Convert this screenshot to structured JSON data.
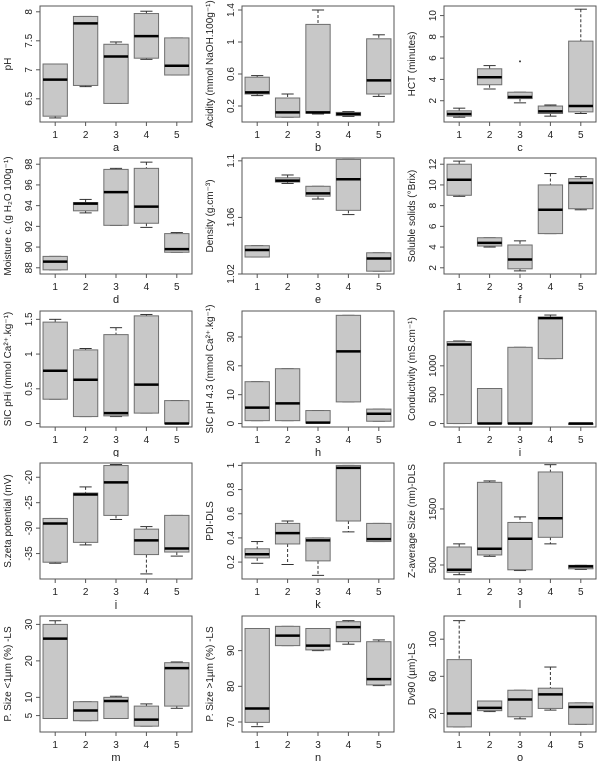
{
  "chart_data": [
    {
      "type": "boxplot",
      "panel_label": "a",
      "ylabel": "pH",
      "categories": [
        "1",
        "2",
        "3",
        "4",
        "5"
      ],
      "ylim": [
        6.1,
        8.1
      ],
      "yticks": [
        6.5,
        7.0,
        7.5,
        8.0
      ],
      "boxes": [
        {
          "min": 6.17,
          "q1": 6.2,
          "median": 6.83,
          "q3": 7.1,
          "max": 7.1
        },
        {
          "min": 6.71,
          "q1": 6.73,
          "median": 7.8,
          "q3": 7.92,
          "max": 7.92
        },
        {
          "min": 6.42,
          "q1": 6.42,
          "median": 7.23,
          "q3": 7.44,
          "max": 7.48
        },
        {
          "min": 7.18,
          "q1": 7.2,
          "median": 7.58,
          "q3": 7.97,
          "max": 8.01
        },
        {
          "min": 6.91,
          "q1": 6.91,
          "median": 7.07,
          "q3": 7.55,
          "max": 7.55
        }
      ]
    },
    {
      "type": "boxplot",
      "panel_label": "b",
      "ylabel": "Acidity (mmol NaOH.100g⁻¹)",
      "categories": [
        "1",
        "2",
        "3",
        "4",
        "5"
      ],
      "ylim": [
        0.0,
        1.45
      ],
      "yticks": [
        0.2,
        0.6,
        1.0,
        1.4
      ],
      "boxes": [
        {
          "min": 0.33,
          "q1": 0.35,
          "median": 0.37,
          "q3": 0.56,
          "max": 0.58
        },
        {
          "min": 0.06,
          "q1": 0.06,
          "median": 0.12,
          "q3": 0.3,
          "max": 0.35
        },
        {
          "min": 0.1,
          "q1": 0.11,
          "median": 0.12,
          "q3": 1.22,
          "max": 1.4
        },
        {
          "min": 0.07,
          "q1": 0.08,
          "median": 0.1,
          "q3": 0.12,
          "max": 0.13
        },
        {
          "min": 0.32,
          "q1": 0.35,
          "median": 0.52,
          "q3": 1.04,
          "max": 1.09
        }
      ]
    },
    {
      "type": "boxplot",
      "panel_label": "c",
      "ylabel": "HCT (minutes)",
      "categories": [
        "1",
        "2",
        "3",
        "4",
        "5"
      ],
      "ylim": [
        0.0,
        10.9
      ],
      "yticks": [
        2,
        4,
        6,
        8,
        10
      ],
      "boxes": [
        {
          "min": 0.45,
          "q1": 0.55,
          "median": 0.75,
          "q3": 1.05,
          "max": 1.3
        },
        {
          "min": 3.1,
          "q1": 3.5,
          "median": 4.2,
          "q3": 5.0,
          "max": 5.3
        },
        {
          "min": 1.8,
          "q1": 2.2,
          "median": 2.35,
          "q3": 2.8,
          "max": 2.8,
          "outliers": [
            5.7
          ]
        },
        {
          "min": 0.55,
          "q1": 0.8,
          "median": 1.0,
          "q3": 1.5,
          "max": 1.6
        },
        {
          "min": 0.8,
          "q1": 0.95,
          "median": 1.5,
          "q3": 7.6,
          "max": 10.6
        }
      ]
    },
    {
      "type": "boxplot",
      "panel_label": "d",
      "ylabel": "Moisture c. (g H₂O 100g⁻¹)",
      "categories": [
        "1",
        "2",
        "3",
        "4",
        "5"
      ],
      "ylim": [
        87.4,
        98.6
      ],
      "yticks": [
        88,
        90,
        92,
        94,
        96,
        98
      ],
      "boxes": [
        {
          "min": 87.8,
          "q1": 87.8,
          "median": 88.6,
          "q3": 89.1,
          "max": 89.1
        },
        {
          "min": 93.3,
          "q1": 93.5,
          "median": 94.2,
          "q3": 94.3,
          "max": 94.6
        },
        {
          "min": 92.1,
          "q1": 92.1,
          "median": 95.3,
          "q3": 97.5,
          "max": 97.6
        },
        {
          "min": 91.9,
          "q1": 92.3,
          "median": 93.9,
          "q3": 97.6,
          "max": 98.2
        },
        {
          "min": 89.5,
          "q1": 89.5,
          "median": 89.8,
          "q3": 91.3,
          "max": 91.4
        }
      ]
    },
    {
      "type": "boxplot",
      "panel_label": "e",
      "ylabel": "Density (g.cm⁻³)",
      "categories": [
        "1",
        "2",
        "3",
        "4",
        "5"
      ],
      "ylim": [
        1.02,
        1.102
      ],
      "yticks": [
        1.02,
        1.06,
        1.1
      ],
      "boxes": [
        {
          "min": 1.032,
          "q1": 1.032,
          "median": 1.037,
          "q3": 1.04,
          "max": 1.04
        },
        {
          "min": 1.084,
          "q1": 1.085,
          "median": 1.086,
          "q3": 1.088,
          "max": 1.09
        },
        {
          "min": 1.073,
          "q1": 1.075,
          "median": 1.077,
          "q3": 1.082,
          "max": 1.082
        },
        {
          "min": 1.062,
          "q1": 1.065,
          "median": 1.087,
          "q3": 1.101,
          "max": 1.101
        },
        {
          "min": 1.022,
          "q1": 1.022,
          "median": 1.031,
          "q3": 1.035,
          "max": 1.035
        }
      ]
    },
    {
      "type": "boxplot",
      "panel_label": "f",
      "ylabel": "Soluble solids (°Brix)",
      "categories": [
        "1",
        "2",
        "3",
        "4",
        "5"
      ],
      "ylim": [
        1.4,
        12.6
      ],
      "yticks": [
        2,
        4,
        6,
        8,
        10,
        12
      ],
      "boxes": [
        {
          "min": 8.9,
          "q1": 9.0,
          "median": 10.5,
          "q3": 12.0,
          "max": 12.3
        },
        {
          "min": 4.0,
          "q1": 4.1,
          "median": 4.4,
          "q3": 4.9,
          "max": 4.9
        },
        {
          "min": 1.7,
          "q1": 1.9,
          "median": 2.8,
          "q3": 4.2,
          "max": 4.6
        },
        {
          "min": 5.3,
          "q1": 5.3,
          "median": 7.6,
          "q3": 10.0,
          "max": 11.1
        },
        {
          "min": 7.6,
          "q1": 7.7,
          "median": 10.2,
          "q3": 10.6,
          "max": 10.8
        }
      ]
    },
    {
      "type": "boxplot",
      "panel_label": "g",
      "ylabel": "SIC pHi (mmol Ca²⁺.kg⁻¹)",
      "categories": [
        "1",
        "2",
        "3",
        "4",
        "5"
      ],
      "ylim": [
        -0.05,
        1.62
      ],
      "yticks": [
        0.0,
        0.5,
        1.0,
        1.5
      ],
      "boxes": [
        {
          "min": 0.35,
          "q1": 0.35,
          "median": 0.76,
          "q3": 1.46,
          "max": 1.5
        },
        {
          "min": 0.1,
          "q1": 0.1,
          "median": 0.63,
          "q3": 1.06,
          "max": 1.08
        },
        {
          "min": 0.1,
          "q1": 0.11,
          "median": 0.15,
          "q3": 1.28,
          "max": 1.38
        },
        {
          "min": 0.15,
          "q1": 0.15,
          "median": 0.56,
          "q3": 1.55,
          "max": 1.57
        },
        {
          "min": 0.0,
          "q1": 0.0,
          "median": 0.0,
          "q3": 0.33,
          "max": 0.33
        }
      ]
    },
    {
      "type": "boxplot",
      "panel_label": "h",
      "ylabel": "SIC pH 4.3 (mmol Ca²⁺.kg⁻¹)",
      "categories": [
        "1",
        "2",
        "3",
        "4",
        "5"
      ],
      "ylim": [
        -1.2,
        39
      ],
      "yticks": [
        0,
        10,
        20,
        30
      ],
      "boxes": [
        {
          "min": 1,
          "q1": 1,
          "median": 5.5,
          "q3": 14.5,
          "max": 14.5
        },
        {
          "min": 1,
          "q1": 1,
          "median": 7,
          "q3": 19,
          "max": 19
        },
        {
          "min": 0.2,
          "q1": 0.2,
          "median": 0.3,
          "q3": 4.5,
          "max": 4.5
        },
        {
          "min": 7.5,
          "q1": 7.5,
          "median": 25,
          "q3": 37.5,
          "max": 37.5
        },
        {
          "min": 0.8,
          "q1": 0.8,
          "median": 3.4,
          "q3": 5,
          "max": 5
        }
      ]
    },
    {
      "type": "boxplot",
      "panel_label": "i",
      "ylabel": "Conductivity (mS.cm⁻¹)",
      "categories": [
        "1",
        "2",
        "3",
        "4",
        "5"
      ],
      "ylim": [
        -60,
        1950
      ],
      "yticks": [
        0,
        500,
        1000
      ],
      "boxes": [
        {
          "min": 0,
          "q1": 0,
          "median": 1370,
          "q3": 1420,
          "max": 1430
        },
        {
          "min": 0,
          "q1": 0,
          "median": 0,
          "q3": 607,
          "max": 607
        },
        {
          "min": 0,
          "q1": 0,
          "median": 0,
          "q3": 1321,
          "max": 1321
        },
        {
          "min": 1125,
          "q1": 1125,
          "median": 1827,
          "q3": 1845,
          "max": 1880
        },
        {
          "min": 0,
          "q1": 0,
          "median": 0,
          "q3": 0,
          "max": 0
        }
      ]
    },
    {
      "type": "boxplot",
      "panel_label": "j",
      "ylabel": "S.zeta potential (mV)",
      "categories": [
        "1",
        "2",
        "3",
        "4",
        "5"
      ],
      "ylim": [
        -40,
        -17.2
      ],
      "yticks": [
        -35,
        -30,
        -25,
        -20
      ],
      "boxes": [
        {
          "min": -36.9,
          "q1": -36.7,
          "median": -29.1,
          "q3": -28.1,
          "max": -28.1
        },
        {
          "min": -33.3,
          "q1": -32.8,
          "median": -23.4,
          "q3": -23.1,
          "max": -21.9
        },
        {
          "min": -28.3,
          "q1": -27.5,
          "median": -21.0,
          "q3": -17.7,
          "max": -17.5
        },
        {
          "min": -39.0,
          "q1": -35.2,
          "median": -32.4,
          "q3": -30.2,
          "max": -29.7
        },
        {
          "min": -35.5,
          "q1": -34.7,
          "median": -34.0,
          "q3": -27.5,
          "max": -27.5
        }
      ]
    },
    {
      "type": "boxplot",
      "panel_label": "k",
      "ylabel": "PDI-DLS",
      "categories": [
        "1",
        "2",
        "3",
        "4",
        "5"
      ],
      "ylim": [
        0.06,
        1.02
      ],
      "yticks": [
        0.2,
        0.4,
        0.6,
        0.8,
        1.0
      ],
      "boxes": [
        {
          "min": 0.19,
          "q1": 0.235,
          "median": 0.265,
          "q3": 0.31,
          "max": 0.37
        },
        {
          "min": 0.18,
          "q1": 0.35,
          "median": 0.44,
          "q3": 0.52,
          "max": 0.54
        },
        {
          "min": 0.09,
          "q1": 0.21,
          "median": 0.38,
          "q3": 0.4,
          "max": 0.4
        },
        {
          "min": 0.45,
          "q1": 0.54,
          "median": 0.98,
          "q3": 1.0,
          "max": 1.0
        },
        {
          "min": 0.37,
          "q1": 0.37,
          "median": 0.39,
          "q3": 0.52,
          "max": 0.52
        }
      ]
    },
    {
      "type": "boxplot",
      "panel_label": "l",
      "ylabel": "Z-average Size (nm)-DLS",
      "categories": [
        "1",
        "2",
        "3",
        "4",
        "5"
      ],
      "ylim": [
        250,
        2320
      ],
      "yticks": [
        500,
        1500
      ],
      "boxes": [
        {
          "min": 327,
          "q1": 370,
          "median": 414,
          "q3": 821,
          "max": 877
        },
        {
          "min": 655,
          "q1": 679,
          "median": 790,
          "q3": 1975,
          "max": 2000
        },
        {
          "min": 401,
          "q1": 414,
          "median": 969,
          "q3": 1259,
          "max": 1358
        },
        {
          "min": 877,
          "q1": 994,
          "median": 1333,
          "q3": 2160,
          "max": 2290
        },
        {
          "min": 420,
          "q1": 432,
          "median": 475,
          "q3": 494,
          "max": 494
        }
      ]
    },
    {
      "type": "boxplot",
      "panel_label": "m",
      "ylabel": "P. Size <1µm (%) -LS",
      "categories": [
        "1",
        "2",
        "3",
        "4",
        "5"
      ],
      "ylim": [
        0.5,
        32.3
      ],
      "yticks": [
        5,
        10,
        20,
        30
      ],
      "boxes": [
        {
          "min": 4.2,
          "q1": 4.2,
          "median": 26.1,
          "q3": 30,
          "max": 31
        },
        {
          "min": 3.6,
          "q1": 3.6,
          "median": 6.4,
          "q3": 8.8,
          "max": 8.8
        },
        {
          "min": 4.2,
          "q1": 4.2,
          "median": 9,
          "q3": 10,
          "max": 10.3
        },
        {
          "min": 2.1,
          "q1": 2.1,
          "median": 3.9,
          "q3": 7.6,
          "max": 8.2
        },
        {
          "min": 7,
          "q1": 7.6,
          "median": 18,
          "q3": 19.5,
          "max": 19.7
        }
      ]
    },
    {
      "type": "boxplot",
      "panel_label": "n",
      "ylabel": "P. Size >1µm (%) -LS",
      "categories": [
        "1",
        "2",
        "3",
        "4",
        "5"
      ],
      "ylim": [
        67.2,
        99.7
      ],
      "yticks": [
        70,
        80,
        90
      ],
      "boxes": [
        {
          "min": 68.7,
          "q1": 69.9,
          "median": 73.8,
          "q3": 96.2,
          "max": 96.2
        },
        {
          "min": 91.4,
          "q1": 91.4,
          "median": 94.2,
          "q3": 96.8,
          "max": 96.8
        },
        {
          "min": 90,
          "q1": 90.2,
          "median": 91.4,
          "q3": 96.2,
          "max": 96.2
        },
        {
          "min": 91.8,
          "q1": 92.5,
          "median": 96.6,
          "q3": 98.1,
          "max": 98.4
        },
        {
          "min": 80.2,
          "q1": 80.4,
          "median": 82,
          "q3": 92.5,
          "max": 93
        }
      ]
    },
    {
      "type": "boxplot",
      "panel_label": "o",
      "ylabel": "Dv90 (µm)-LS",
      "categories": [
        "1",
        "2",
        "3",
        "4",
        "5"
      ],
      "ylim": [
        0,
        125
      ],
      "yticks": [
        20,
        60,
        100
      ],
      "boxes": [
        {
          "min": 5.5,
          "q1": 5.5,
          "median": 20,
          "q3": 78,
          "max": 120
        },
        {
          "min": 22,
          "q1": 23,
          "median": 26,
          "q3": 33.4,
          "max": 33.4
        },
        {
          "min": 14.2,
          "q1": 16.4,
          "median": 35,
          "q3": 45,
          "max": 45
        },
        {
          "min": 23.6,
          "q1": 25.4,
          "median": 40.6,
          "q3": 47.2,
          "max": 70
        },
        {
          "min": 8.3,
          "q1": 8.3,
          "median": 27,
          "q3": 31.4,
          "max": 31.4
        }
      ]
    }
  ],
  "colors": {
    "box_fill": "#c8c8c8",
    "box_border": "#6e6e6e",
    "median": "#000000",
    "whisker": "#333333"
  }
}
